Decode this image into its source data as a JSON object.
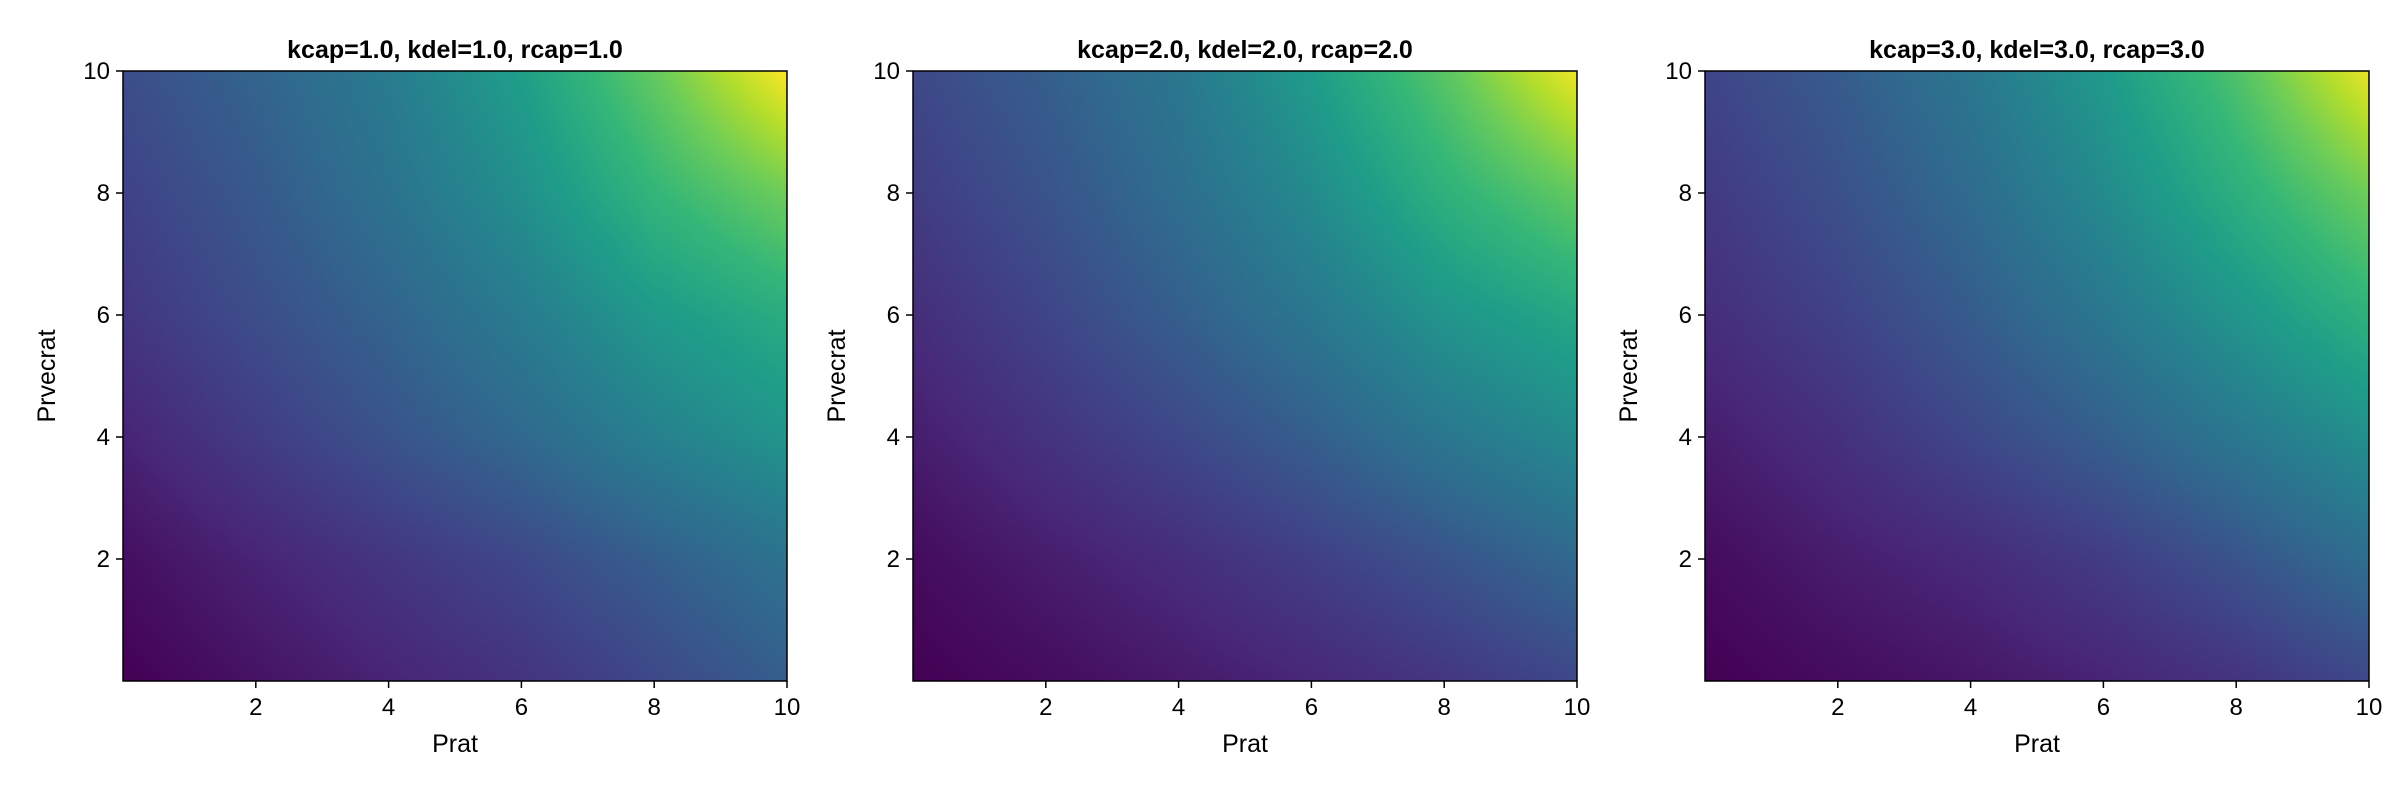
{
  "chart_data": [
    {
      "type": "heatmap",
      "title": "kcap=1.0, kdel=1.0, rcap=1.0",
      "xlabel": "Prat",
      "ylabel": "Prvecrat",
      "xlim": [
        0,
        10
      ],
      "ylim": [
        0,
        10
      ],
      "xticks": [
        2,
        4,
        6,
        8,
        10
      ],
      "yticks": [
        2,
        4,
        6,
        8,
        10
      ],
      "colormap": "viridis",
      "grid": false,
      "x": [
        0,
        2,
        4,
        6,
        8,
        10
      ],
      "y": [
        0,
        2,
        4,
        6,
        8,
        10
      ],
      "z": [
        [
          0.0,
          0.05,
          0.1,
          0.15,
          0.22,
          0.3
        ],
        [
          0.04,
          0.1,
          0.16,
          0.22,
          0.3,
          0.38
        ],
        [
          0.1,
          0.18,
          0.26,
          0.34,
          0.44,
          0.52
        ],
        [
          0.16,
          0.24,
          0.32,
          0.42,
          0.54,
          0.62
        ],
        [
          0.2,
          0.28,
          0.38,
          0.5,
          0.66,
          0.78
        ],
        [
          0.24,
          0.32,
          0.42,
          0.56,
          0.76,
          1.0
        ]
      ]
    },
    {
      "type": "heatmap",
      "title": "kcap=2.0, kdel=2.0, rcap=2.0",
      "xlabel": "Prat",
      "ylabel": "Prvecrat",
      "xlim": [
        0,
        10
      ],
      "ylim": [
        0,
        10
      ],
      "xticks": [
        2,
        4,
        6,
        8,
        10
      ],
      "yticks": [
        2,
        4,
        6,
        8,
        10
      ],
      "colormap": "viridis",
      "grid": false,
      "x": [
        0,
        2,
        4,
        6,
        8,
        10
      ],
      "y": [
        0,
        2,
        4,
        6,
        8,
        10
      ],
      "z": [
        [
          0.0,
          0.03,
          0.07,
          0.11,
          0.16,
          0.22
        ],
        [
          0.03,
          0.08,
          0.13,
          0.19,
          0.26,
          0.34
        ],
        [
          0.08,
          0.15,
          0.22,
          0.3,
          0.4,
          0.48
        ],
        [
          0.13,
          0.21,
          0.3,
          0.4,
          0.52,
          0.6
        ],
        [
          0.18,
          0.26,
          0.36,
          0.48,
          0.64,
          0.76
        ],
        [
          0.22,
          0.3,
          0.4,
          0.55,
          0.74,
          0.98
        ]
      ]
    },
    {
      "type": "heatmap",
      "title": "kcap=3.0, kdel=3.0, rcap=3.0",
      "xlabel": "Prat",
      "ylabel": "Prvecrat",
      "xlim": [
        0,
        10
      ],
      "ylim": [
        0,
        10
      ],
      "xticks": [
        2,
        4,
        6,
        8,
        10
      ],
      "yticks": [
        2,
        4,
        6,
        8,
        10
      ],
      "colormap": "viridis",
      "grid": false,
      "x": [
        0,
        2,
        4,
        6,
        8,
        10
      ],
      "y": [
        0,
        2,
        4,
        6,
        8,
        10
      ],
      "z": [
        [
          0.0,
          0.03,
          0.06,
          0.1,
          0.15,
          0.22
        ],
        [
          0.03,
          0.08,
          0.12,
          0.18,
          0.26,
          0.36
        ],
        [
          0.08,
          0.14,
          0.22,
          0.3,
          0.4,
          0.5
        ],
        [
          0.13,
          0.2,
          0.29,
          0.4,
          0.52,
          0.64
        ],
        [
          0.17,
          0.25,
          0.35,
          0.48,
          0.63,
          0.78
        ],
        [
          0.21,
          0.29,
          0.4,
          0.54,
          0.72,
          0.97
        ]
      ]
    }
  ]
}
